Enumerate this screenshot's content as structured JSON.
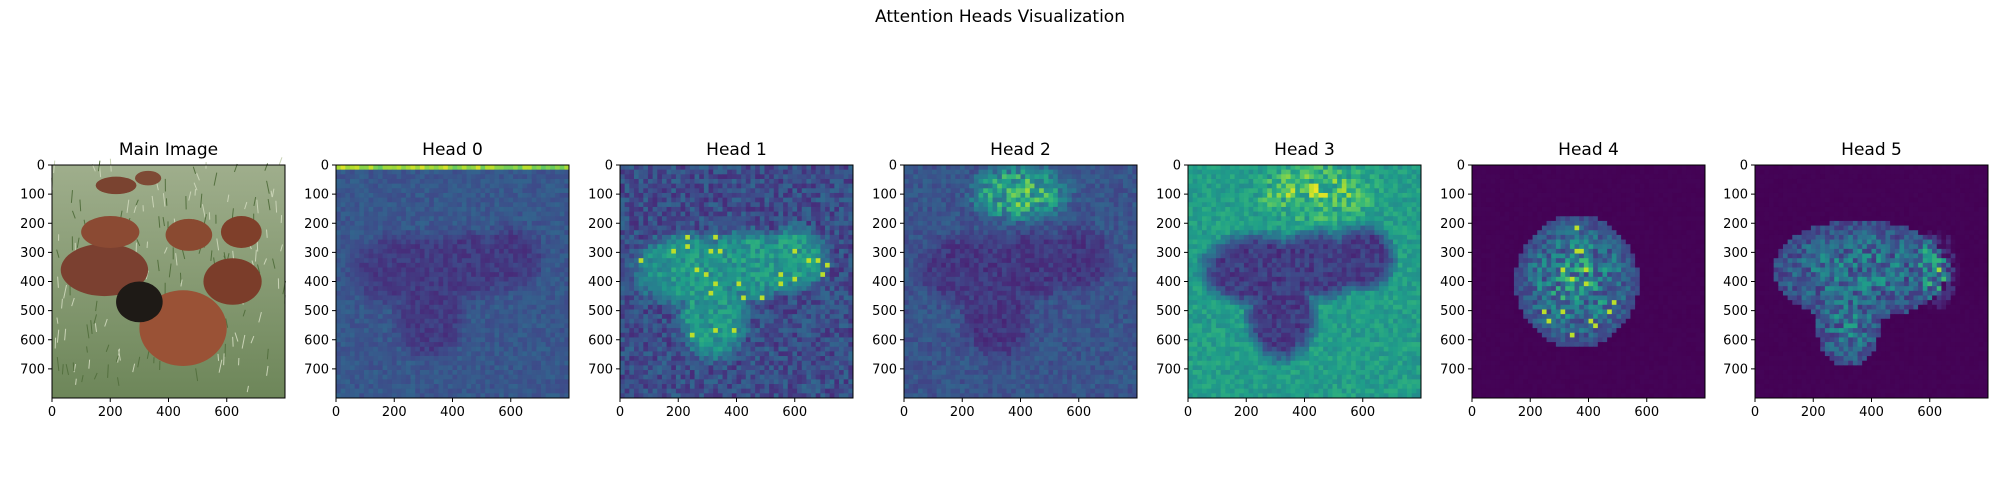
{
  "figure": {
    "title": "Attention Heads Visualization"
  },
  "chart_data": [
    {
      "type": "image",
      "title": "Main Image",
      "x_ticks": [
        "0",
        "200",
        "400",
        "600"
      ],
      "y_ticks": [
        "0",
        "100",
        "200",
        "300",
        "400",
        "500",
        "600",
        "700"
      ],
      "xlim": [
        0,
        800
      ],
      "ylim": [
        800,
        0
      ],
      "content": "photograph"
    },
    {
      "type": "heatmap",
      "title": "Head 0",
      "colormap": "viridis",
      "x_ticks": [
        "0",
        "200",
        "400",
        "600"
      ],
      "y_ticks": [
        "0",
        "100",
        "200",
        "300",
        "400",
        "500",
        "600",
        "700"
      ],
      "xlim": [
        0,
        800
      ],
      "ylim": [
        800,
        0
      ]
    },
    {
      "type": "heatmap",
      "title": "Head 1",
      "colormap": "viridis",
      "x_ticks": [
        "0",
        "200",
        "400",
        "600"
      ],
      "y_ticks": [
        "0",
        "100",
        "200",
        "300",
        "400",
        "500",
        "600",
        "700"
      ],
      "xlim": [
        0,
        800
      ],
      "ylim": [
        800,
        0
      ]
    },
    {
      "type": "heatmap",
      "title": "Head 2",
      "colormap": "viridis",
      "x_ticks": [
        "0",
        "200",
        "400",
        "600"
      ],
      "y_ticks": [
        "0",
        "100",
        "200",
        "300",
        "400",
        "500",
        "600",
        "700"
      ],
      "xlim": [
        0,
        800
      ],
      "ylim": [
        800,
        0
      ]
    },
    {
      "type": "heatmap",
      "title": "Head 3",
      "colormap": "viridis",
      "x_ticks": [
        "0",
        "200",
        "400",
        "600"
      ],
      "y_ticks": [
        "0",
        "100",
        "200",
        "300",
        "400",
        "500",
        "600",
        "700"
      ],
      "xlim": [
        0,
        800
      ],
      "ylim": [
        800,
        0
      ]
    },
    {
      "type": "heatmap",
      "title": "Head 4",
      "colormap": "viridis",
      "x_ticks": [
        "0",
        "200",
        "400",
        "600"
      ],
      "y_ticks": [
        "0",
        "100",
        "200",
        "300",
        "400",
        "500",
        "600",
        "700"
      ],
      "xlim": [
        0,
        800
      ],
      "ylim": [
        800,
        0
      ]
    },
    {
      "type": "heatmap",
      "title": "Head 5",
      "colormap": "viridis",
      "x_ticks": [
        "0",
        "200",
        "400",
        "600"
      ],
      "y_ticks": [
        "0",
        "100",
        "200",
        "300",
        "400",
        "500",
        "600",
        "700"
      ],
      "xlim": [
        0,
        800
      ],
      "ylim": [
        800,
        0
      ]
    }
  ]
}
